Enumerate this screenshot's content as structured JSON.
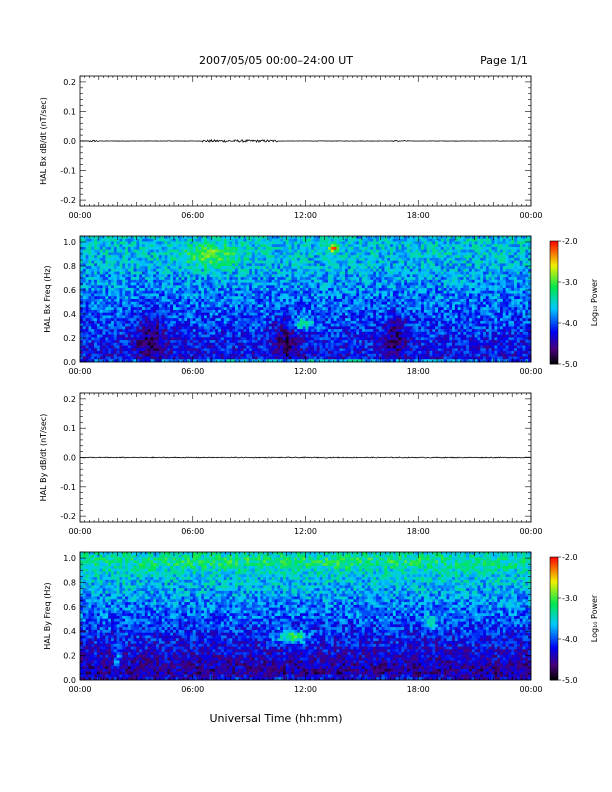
{
  "header": {
    "title": "2007/05/05  00:00–24:00 UT",
    "page": "Page 1/1"
  },
  "footer": {
    "xlabel": "Universal Time (hh:mm)"
  },
  "chart_data": [
    {
      "type": "line",
      "ylabel": "HAL Bx dB/dt (nT/sec)",
      "xlim": [
        "00:00",
        "24:00"
      ],
      "x_ticks": [
        "00:00",
        "06:00",
        "12:00",
        "18:00",
        "00:00"
      ],
      "ylim": [
        -0.22,
        0.22
      ],
      "y_ticks": [
        "0.2",
        "0.1",
        "0.0",
        "-0.1",
        "-0.2"
      ],
      "y_tick_values": [
        0.2,
        0.1,
        0.0,
        -0.1,
        -0.2
      ],
      "series_level": 0.0,
      "noise_regions": [
        {
          "from_hour": 0.5,
          "to_hour": 1.0,
          "amplitude": 0.003
        },
        {
          "from_hour": 6.5,
          "to_hour": 10.5,
          "amplitude": 0.004
        },
        {
          "from_hour": 16.5,
          "to_hour": 17.5,
          "amplitude": 0.002
        }
      ]
    },
    {
      "type": "heatmap",
      "ylabel": "HAL Bx Freq (Hz)",
      "xlim": [
        "00:00",
        "24:00"
      ],
      "x_ticks": [
        "00:00",
        "06:00",
        "12:00",
        "18:00",
        "00:00"
      ],
      "ylim": [
        0,
        1.05
      ],
      "y_ticks": [
        "1.0",
        "0.8",
        "0.6",
        "0.4",
        "0.2",
        "0.0"
      ],
      "y_tick_values": [
        1.0,
        0.8,
        0.6,
        0.4,
        0.2,
        0.0
      ],
      "colorbar": {
        "label": "Log₁₀ Power",
        "range": [
          -5.0,
          -2.0
        ],
        "ticks": [
          "-2.0",
          "-3.0",
          "-4.0",
          "-5.0"
        ],
        "tick_values": [
          -2.0,
          -3.0,
          -4.0,
          -5.0
        ]
      },
      "base_upper": -3.6,
      "base_lower": -4.3,
      "features": [
        {
          "t": 3.8,
          "f": 0.2,
          "dt": 0.9,
          "df": 0.2,
          "v": -0.5
        },
        {
          "t": 11.0,
          "f": 0.2,
          "dt": 0.7,
          "df": 0.2,
          "v": -0.5
        },
        {
          "t": 16.8,
          "f": 0.2,
          "dt": 0.7,
          "df": 0.2,
          "v": -0.5
        },
        {
          "t": 11.8,
          "f": 0.32,
          "dt": 0.6,
          "df": 0.05,
          "v": 0.8
        },
        {
          "t": 7.0,
          "f": 0.88,
          "dt": 1.5,
          "df": 0.1,
          "v": 0.6
        },
        {
          "t": 13.5,
          "f": 0.95,
          "dt": 0.25,
          "df": 0.03,
          "v": 1.6
        },
        {
          "t": 12.0,
          "f": 0.01,
          "dt": 12.0,
          "df": 0.01,
          "v": 0.7
        }
      ]
    },
    {
      "type": "line",
      "ylabel": "HAL By dB/dt (nT/sec)",
      "xlim": [
        "00:00",
        "24:00"
      ],
      "x_ticks": [
        "00:00",
        "06:00",
        "12:00",
        "18:00",
        "00:00"
      ],
      "ylim": [
        -0.22,
        0.22
      ],
      "y_ticks": [
        "0.2",
        "0.1",
        "0.0",
        "-0.1",
        "-0.2"
      ],
      "y_tick_values": [
        0.2,
        0.1,
        0.0,
        -0.1,
        -0.2
      ],
      "series_level": 0.0,
      "noise_regions": [
        {
          "from_hour": 0.0,
          "to_hour": 24.0,
          "amplitude": 0.0015
        }
      ]
    },
    {
      "type": "heatmap",
      "ylabel": "HAL By Freq (Hz)",
      "xlim": [
        "00:00",
        "24:00"
      ],
      "x_ticks": [
        "00:00",
        "06:00",
        "12:00",
        "18:00",
        "00:00"
      ],
      "ylim": [
        0,
        1.05
      ],
      "y_ticks": [
        "1.0",
        "0.8",
        "0.6",
        "0.4",
        "0.2",
        "0.0"
      ],
      "y_tick_values": [
        1.0,
        0.8,
        0.6,
        0.4,
        0.2,
        0.0
      ],
      "colorbar": {
        "label": "Log₁₀ Power",
        "range": [
          -5.0,
          -2.0
        ],
        "ticks": [
          "-2.0",
          "-3.0",
          "-4.0",
          "-5.0"
        ],
        "tick_values": [
          -2.0,
          -3.0,
          -4.0,
          -5.0
        ]
      },
      "base_upper": -3.5,
      "base_lower": -4.6,
      "features": [
        {
          "t": 11.3,
          "f": 0.35,
          "dt": 0.8,
          "df": 0.05,
          "v": 1.1
        },
        {
          "t": 18.7,
          "f": 0.48,
          "dt": 0.3,
          "df": 0.05,
          "v": 0.8
        },
        {
          "t": 2.0,
          "f": 0.15,
          "dt": 0.2,
          "df": 0.1,
          "v": 0.6
        },
        {
          "t": 12.0,
          "f": 0.02,
          "dt": 12.0,
          "df": 0.015,
          "v": 0.6
        },
        {
          "t": 12.0,
          "f": 0.97,
          "dt": 12.0,
          "df": 0.05,
          "v": 0.3
        }
      ]
    }
  ]
}
